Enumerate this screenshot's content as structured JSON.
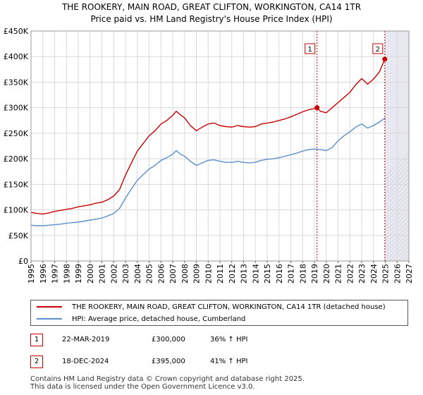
{
  "title": {
    "line1": "THE ROOKERY, MAIN ROAD, GREAT CLIFTON, WORKINGTON, CA14 1TR",
    "line2": "Price paid vs. HM Land Registry's House Price Index (HPI)"
  },
  "chart_data": {
    "type": "line",
    "xlim": [
      1995,
      2027
    ],
    "ylim": [
      0,
      450000
    ],
    "y_ticks": [
      0,
      50000,
      100000,
      150000,
      200000,
      250000,
      300000,
      350000,
      400000,
      450000
    ],
    "y_tick_labels": [
      "£0",
      "£50K",
      "£100K",
      "£150K",
      "£200K",
      "£250K",
      "£300K",
      "£350K",
      "£400K",
      "£450K"
    ],
    "x_ticks": [
      1995,
      1996,
      1997,
      1998,
      1999,
      2000,
      2001,
      2002,
      2003,
      2004,
      2005,
      2006,
      2007,
      2008,
      2009,
      2010,
      2011,
      2012,
      2013,
      2014,
      2015,
      2016,
      2017,
      2018,
      2019,
      2020,
      2021,
      2022,
      2023,
      2024,
      2025,
      2026,
      2027
    ],
    "x_tick_labels": [
      "1995",
      "1996",
      "1997",
      "1998",
      "1999",
      "2000",
      "2001",
      "2002",
      "2003",
      "2004",
      "2005",
      "2006",
      "2007",
      "2008",
      "2009",
      "2010",
      "2011",
      "2012",
      "2013",
      "2014",
      "2015",
      "2016",
      "2017",
      "2018",
      "2019",
      "2020",
      "2021",
      "2022",
      "2023",
      "2024",
      "2025",
      "2026",
      "2027"
    ],
    "forecast_start": 2025.0,
    "series": [
      {
        "name": "THE ROOKERY, MAIN ROAD, GREAT CLIFTON, WORKINGTON, CA14 1TR (detached house)",
        "color": "#cc0000",
        "x": [
          1995.0,
          1995.5,
          1996.0,
          1996.5,
          1997.0,
          1997.5,
          1998.0,
          1998.5,
          1999.0,
          1999.5,
          2000.0,
          2000.5,
          2001.0,
          2001.5,
          2002.0,
          2002.5,
          2003.0,
          2003.5,
          2004.0,
          2004.5,
          2005.0,
          2005.5,
          2006.0,
          2006.5,
          2007.0,
          2007.3,
          2007.6,
          2008.0,
          2008.5,
          2009.0,
          2009.5,
          2010.0,
          2010.5,
          2011.0,
          2011.5,
          2012.0,
          2012.5,
          2013.0,
          2013.5,
          2014.0,
          2014.5,
          2015.0,
          2015.5,
          2016.0,
          2016.5,
          2017.0,
          2017.5,
          2018.0,
          2018.5,
          2019.0,
          2019.22,
          2019.5,
          2020.0,
          2020.5,
          2021.0,
          2021.5,
          2022.0,
          2022.5,
          2023.0,
          2023.5,
          2024.0,
          2024.5,
          2024.96
        ],
        "values": [
          95000,
          93000,
          92000,
          94000,
          97000,
          99000,
          101000,
          103000,
          106000,
          108000,
          110000,
          113000,
          115000,
          120000,
          127000,
          140000,
          168000,
          192000,
          215000,
          230000,
          245000,
          255000,
          268000,
          275000,
          285000,
          293000,
          287000,
          280000,
          265000,
          255000,
          262000,
          268000,
          270000,
          265000,
          263000,
          262000,
          265000,
          263000,
          262000,
          263000,
          268000,
          270000,
          272000,
          275000,
          278000,
          282000,
          287000,
          292000,
          296000,
          298000,
          300000,
          293000,
          290000,
          300000,
          310000,
          320000,
          330000,
          345000,
          357000,
          346000,
          356000,
          370000,
          395000
        ]
      },
      {
        "name": "HPI: Average price, detached house, Cumberland",
        "color": "#5b8fcc",
        "x": [
          1995.0,
          1995.5,
          1996.0,
          1996.5,
          1997.0,
          1997.5,
          1998.0,
          1998.5,
          1999.0,
          1999.5,
          2000.0,
          2000.5,
          2001.0,
          2001.5,
          2002.0,
          2002.5,
          2003.0,
          2003.5,
          2004.0,
          2004.5,
          2005.0,
          2005.5,
          2006.0,
          2006.5,
          2007.0,
          2007.3,
          2007.6,
          2008.0,
          2008.5,
          2009.0,
          2009.5,
          2010.0,
          2010.5,
          2011.0,
          2011.5,
          2012.0,
          2012.5,
          2013.0,
          2013.5,
          2014.0,
          2014.5,
          2015.0,
          2015.5,
          2016.0,
          2016.5,
          2017.0,
          2017.5,
          2018.0,
          2018.5,
          2019.0,
          2019.5,
          2020.0,
          2020.5,
          2021.0,
          2021.5,
          2022.0,
          2022.5,
          2023.0,
          2023.5,
          2024.0,
          2024.5,
          2025.0
        ],
        "values": [
          70000,
          69000,
          69000,
          70000,
          71000,
          72000,
          74000,
          75000,
          76000,
          78000,
          80000,
          82000,
          84000,
          88000,
          93000,
          103000,
          123000,
          141000,
          158000,
          169000,
          180000,
          187000,
          197000,
          202000,
          209000,
          216000,
          210000,
          205000,
          195000,
          187000,
          192000,
          197000,
          198000,
          195000,
          193000,
          193000,
          195000,
          193000,
          192000,
          193000,
          197000,
          199000,
          200000,
          202000,
          205000,
          208000,
          211000,
          215000,
          218000,
          219000,
          218000,
          216000,
          222000,
          235000,
          245000,
          253000,
          262000,
          268000,
          260000,
          265000,
          272000,
          280000
        ]
      }
    ],
    "annotations": [
      {
        "label": "1",
        "x": 2019.22,
        "value": 300000
      },
      {
        "label": "2",
        "x": 2024.96,
        "value": 395000
      }
    ]
  },
  "legend": {
    "price_paid_label": "THE ROOKERY, MAIN ROAD, GREAT CLIFTON, WORKINGTON, CA14 1TR (detached house)",
    "hpi_label": "HPI: Average price, detached house, Cumberland",
    "price_paid_color": "#cc0000",
    "hpi_color": "#5b8fcc"
  },
  "sales": [
    {
      "num": "1",
      "date": "22-MAR-2019",
      "price": "£300,000",
      "hpi": "36% ↑ HPI"
    },
    {
      "num": "2",
      "date": "18-DEC-2024",
      "price": "£395,000",
      "hpi": "41% ↑ HPI"
    }
  ],
  "footer": {
    "line1": "Contains HM Land Registry data © Crown copyright and database right 2025.",
    "line2": "This data is licensed under the Open Government Licence v3.0."
  }
}
